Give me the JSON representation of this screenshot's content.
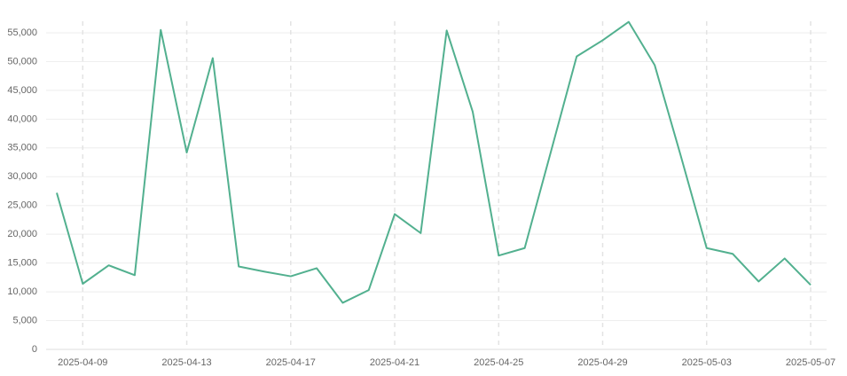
{
  "chart_data": {
    "type": "line",
    "x": [
      "2025-04-08",
      "2025-04-09",
      "2025-04-10",
      "2025-04-11",
      "2025-04-12",
      "2025-04-13",
      "2025-04-14",
      "2025-04-15",
      "2025-04-16",
      "2025-04-17",
      "2025-04-18",
      "2025-04-19",
      "2025-04-20",
      "2025-04-21",
      "2025-04-22",
      "2025-04-23",
      "2025-04-24",
      "2025-04-25",
      "2025-04-26",
      "2025-04-27",
      "2025-04-28",
      "2025-04-29",
      "2025-04-30",
      "2025-05-01",
      "2025-05-02",
      "2025-05-03",
      "2025-05-04",
      "2025-05-05",
      "2025-05-06",
      "2025-05-07"
    ],
    "series": [
      {
        "color": "#52b08f",
        "values": [
          27200,
          11400,
          14600,
          12900,
          55500,
          34200,
          50600,
          14400,
          13500,
          12700,
          14100,
          8100,
          10300,
          23500,
          20200,
          55400,
          41300,
          16300,
          17600,
          34200,
          50900,
          53700,
          56900,
          49400,
          33700,
          17600,
          16600,
          11800,
          15800,
          11200
        ]
      }
    ],
    "xticks": [
      "2025-04-09",
      "2025-04-13",
      "2025-04-17",
      "2025-04-21",
      "2025-04-25",
      "2025-04-29",
      "2025-05-03",
      "2025-05-07"
    ],
    "ylim": [
      0,
      57000
    ],
    "yticks": [
      0,
      {
        "value": 5000,
        "label": "5,000"
      },
      {
        "value": 10000,
        "label": "10,000"
      },
      {
        "value": 15000,
        "label": "15,000"
      },
      {
        "value": 20000,
        "label": "20,000"
      },
      {
        "value": 25000,
        "label": "25,000"
      },
      {
        "value": 30000,
        "label": "30,000"
      },
      {
        "value": 35000,
        "label": "35,000"
      },
      {
        "value": 40000,
        "label": "40,000"
      },
      {
        "value": 45000,
        "label": "45,000"
      },
      {
        "value": 50000,
        "label": "50,000"
      },
      {
        "value": 55000,
        "label": "55,000"
      }
    ],
    "grid": true
  }
}
